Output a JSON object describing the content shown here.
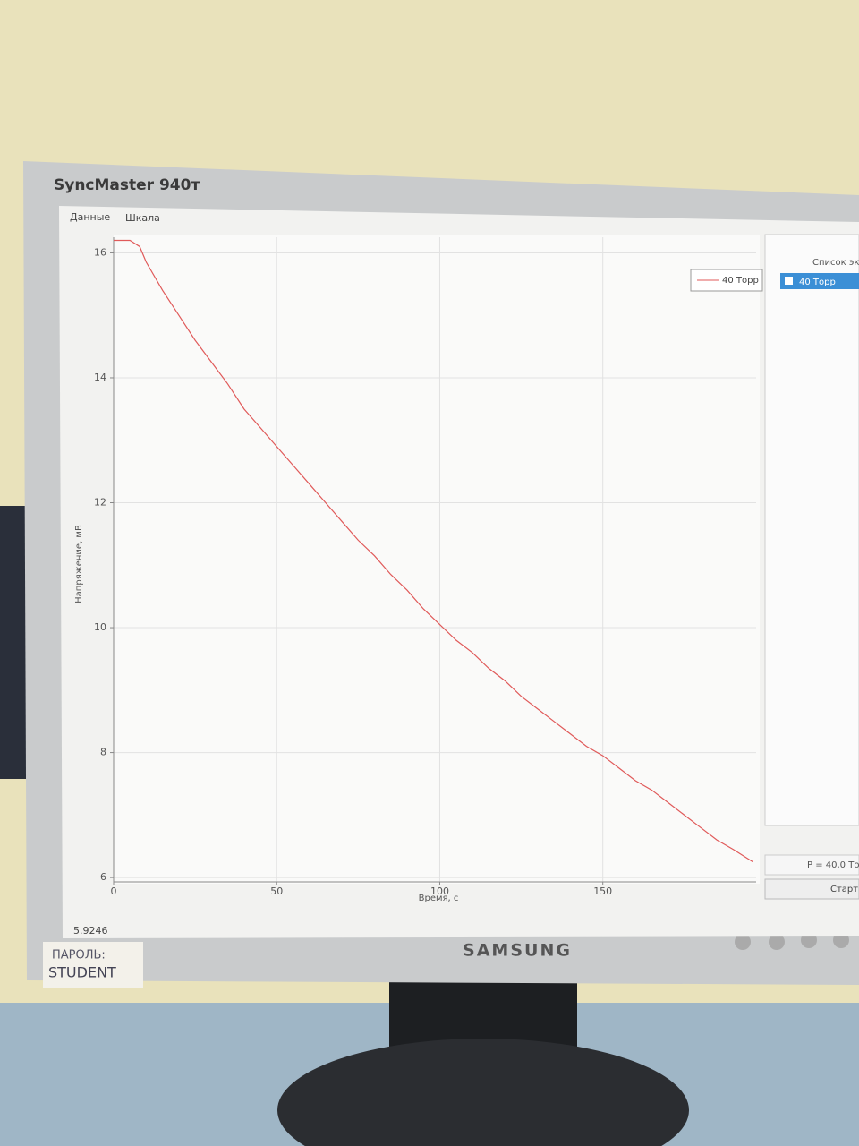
{
  "monitor": {
    "model": "SyncMaster 940т",
    "brand": "SAMSUNG",
    "note": [
      "ПАРОЛЬ:",
      "STUDENT"
    ]
  },
  "app": {
    "menu": [
      "Данные",
      "Шкала"
    ],
    "panel_title": "Список экс",
    "panel_item": "40 Торр",
    "readout": "P = 40,0 То",
    "start_button": "Старт",
    "status": "5.9246"
  },
  "chart_data": {
    "type": "line",
    "xlabel": "Время, с",
    "ylabel": "Напряжение, мВ",
    "x": [
      0,
      5,
      8,
      10,
      15,
      20,
      25,
      30,
      35,
      40,
      45,
      50,
      55,
      60,
      65,
      70,
      75,
      80,
      85,
      90,
      95,
      100,
      105,
      110,
      115,
      120,
      125,
      130,
      135,
      140,
      145,
      150,
      155,
      160,
      165,
      170,
      175,
      180,
      185,
      190,
      196
    ],
    "series": [
      {
        "name": "40 Торр",
        "color": "#e05a5a",
        "values": [
          16.2,
          16.2,
          16.1,
          15.85,
          15.4,
          15.0,
          14.6,
          14.25,
          13.9,
          13.5,
          13.2,
          12.9,
          12.6,
          12.3,
          12.0,
          11.7,
          11.4,
          11.15,
          10.85,
          10.6,
          10.3,
          10.05,
          9.8,
          9.6,
          9.35,
          9.15,
          8.9,
          8.7,
          8.5,
          8.3,
          8.1,
          7.95,
          7.75,
          7.55,
          7.4,
          7.2,
          7.0,
          6.8,
          6.6,
          6.45,
          6.25
        ]
      }
    ],
    "xlim": [
      0,
      197
    ],
    "xticks": [
      0,
      50,
      100,
      150
    ],
    "ylim": [
      5.93,
      16.25
    ],
    "yticks": [
      6,
      8,
      10,
      12,
      14,
      16
    ],
    "grid": true,
    "legend": "upper right"
  }
}
